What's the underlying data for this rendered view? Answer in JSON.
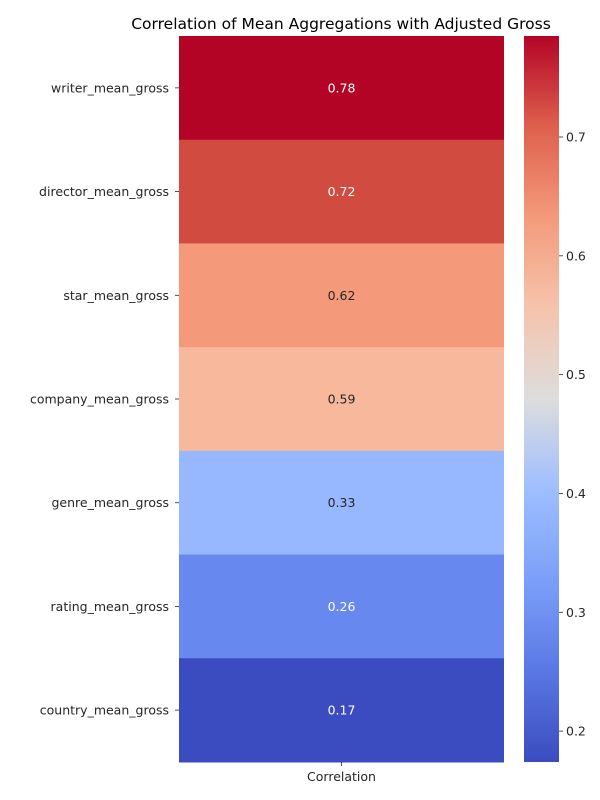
{
  "chart_data": {
    "type": "heatmap",
    "title": "Correlation of Mean Aggregations with Adjusted Gross",
    "columns": [
      "Correlation"
    ],
    "rows": [
      "writer_mean_gross",
      "director_mean_gross",
      "star_mean_gross",
      "company_mean_gross",
      "genre_mean_gross",
      "rating_mean_gross",
      "country_mean_gross"
    ],
    "values": [
      0.78,
      0.72,
      0.62,
      0.59,
      0.33,
      0.26,
      0.17
    ],
    "value_labels": [
      "0.78",
      "0.72",
      "0.62",
      "0.59",
      "0.33",
      "0.26",
      "0.17"
    ],
    "colormap": "coolwarm",
    "colorbar": {
      "range": [
        0.174,
        0.785
      ],
      "ticks": [
        0.2,
        0.3,
        0.4,
        0.5,
        0.6,
        0.7
      ],
      "tick_labels": [
        "0.2",
        "0.3",
        "0.4",
        "0.5",
        "0.6",
        "0.7"
      ]
    },
    "colors": {
      "writer_mean_gross": "#b40426",
      "director_mean_gross": "#d24b40",
      "star_mean_gross": "#f49a7b",
      "company_mean_gross": "#f7b89c",
      "genre_mean_gross": "#97b8ff",
      "rating_mean_gross": "#6788ee",
      "country_mean_gross": "#3b4cc0"
    }
  }
}
